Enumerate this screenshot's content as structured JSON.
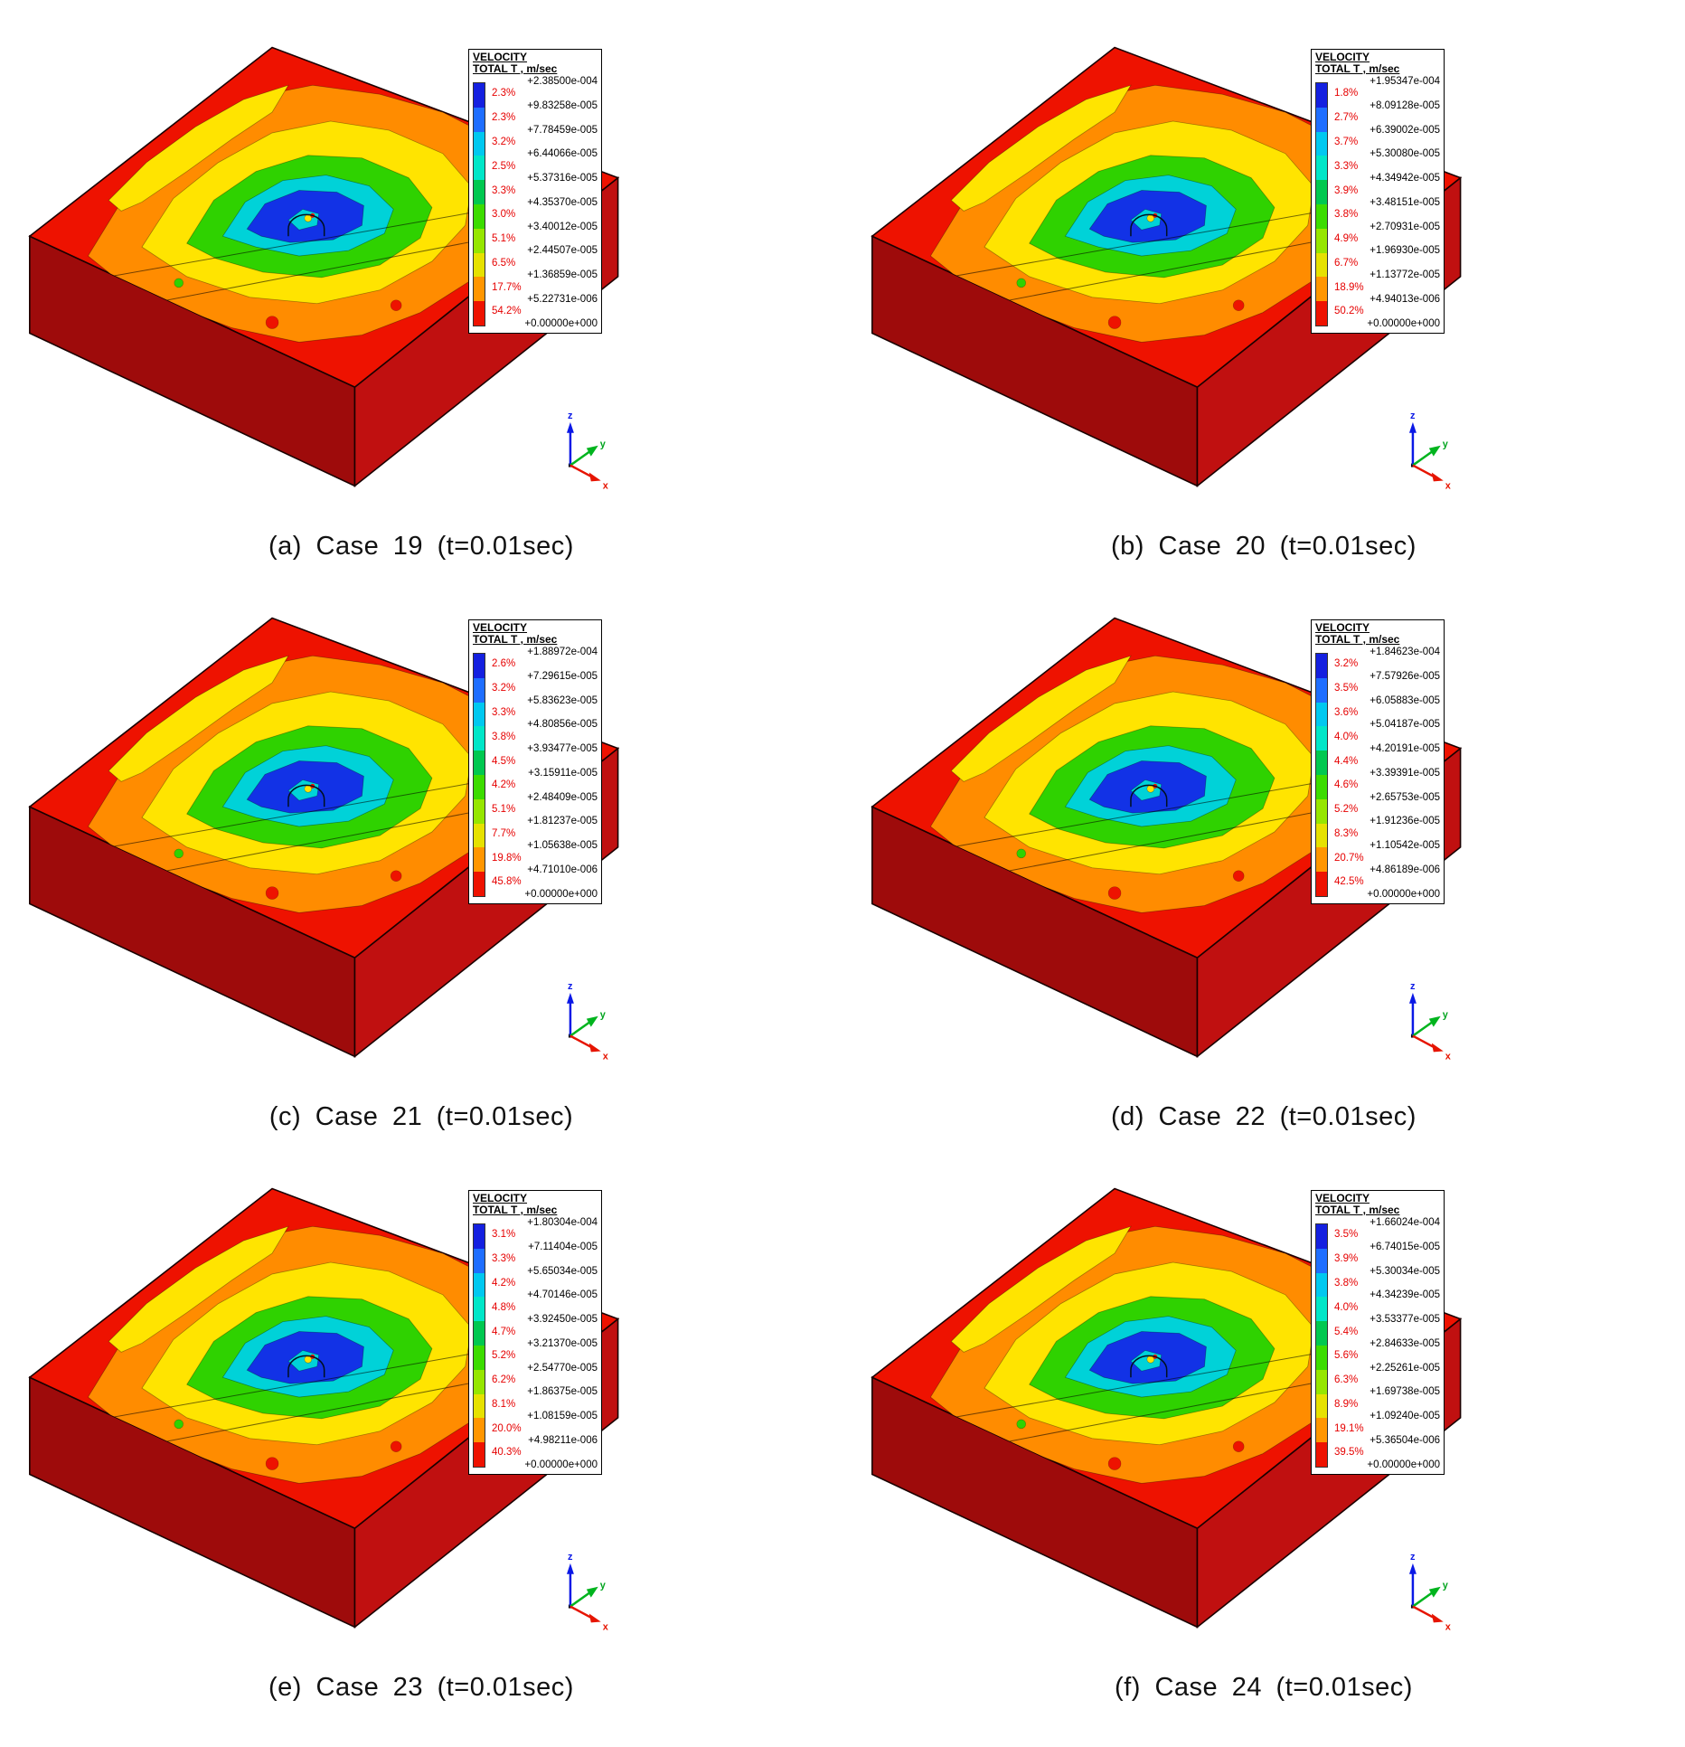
{
  "figure": {
    "legend_title_line1": "VELOCITY",
    "legend_title_line2": "TOTAL T , m/sec",
    "axis_labels": {
      "x": "x",
      "y": "y",
      "z": "z"
    },
    "colormap": [
      "#1420e0",
      "#1e6eff",
      "#00c8f0",
      "#00e6c8",
      "#00c850",
      "#3cdc00",
      "#96e600",
      "#e6e100",
      "#ff9600",
      "#ee1200"
    ],
    "model_colors": {
      "contour_red": "#ee1200",
      "contour_orange": "#ff8c00",
      "contour_yellow": "#ffe400",
      "contour_green": "#2fd200",
      "contour_cyan": "#00d2d8",
      "contour_blue": "#1232e6",
      "left_face": "#9e0b0b",
      "right_face": "#c01010"
    }
  },
  "panels": [
    {
      "caption": "(a) Case 19 (t=0.01sec)",
      "legend_values": [
        "+2.38500e-004",
        "+9.83258e-005",
        "+7.78459e-005",
        "+6.44066e-005",
        "+5.37316e-005",
        "+4.35370e-005",
        "+3.40012e-005",
        "+2.44507e-005",
        "+1.36859e-005",
        "+5.22731e-006",
        "+0.00000e+000"
      ],
      "legend_percents": [
        "2.3%",
        "2.3%",
        "3.2%",
        "2.5%",
        "3.3%",
        "3.0%",
        "5.1%",
        "6.5%",
        "17.7%",
        "54.2%"
      ]
    },
    {
      "caption": "(b) Case 20 (t=0.01sec)",
      "legend_values": [
        "+1.95347e-004",
        "+8.09128e-005",
        "+6.39002e-005",
        "+5.30080e-005",
        "+4.34942e-005",
        "+3.48151e-005",
        "+2.70931e-005",
        "+1.96930e-005",
        "+1.13772e-005",
        "+4.94013e-006",
        "+0.00000e+000"
      ],
      "legend_percents": [
        "1.8%",
        "2.7%",
        "3.7%",
        "3.3%",
        "3.9%",
        "3.8%",
        "4.9%",
        "6.7%",
        "18.9%",
        "50.2%"
      ]
    },
    {
      "caption": "(c) Case 21 (t=0.01sec)",
      "legend_values": [
        "+1.88972e-004",
        "+7.29615e-005",
        "+5.83623e-005",
        "+4.80856e-005",
        "+3.93477e-005",
        "+3.15911e-005",
        "+2.48409e-005",
        "+1.81237e-005",
        "+1.05638e-005",
        "+4.71010e-006",
        "+0.00000e+000"
      ],
      "legend_percents": [
        "2.6%",
        "3.2%",
        "3.3%",
        "3.8%",
        "4.5%",
        "4.2%",
        "5.1%",
        "7.7%",
        "19.8%",
        "45.8%"
      ]
    },
    {
      "caption": "(d) Case 22 (t=0.01sec)",
      "legend_values": [
        "+1.84623e-004",
        "+7.57926e-005",
        "+6.05883e-005",
        "+5.04187e-005",
        "+4.20191e-005",
        "+3.39391e-005",
        "+2.65753e-005",
        "+1.91236e-005",
        "+1.10542e-005",
        "+4.86189e-006",
        "+0.00000e+000"
      ],
      "legend_percents": [
        "3.2%",
        "3.5%",
        "3.6%",
        "4.0%",
        "4.4%",
        "4.6%",
        "5.2%",
        "8.3%",
        "20.7%",
        "42.5%"
      ]
    },
    {
      "caption": "(e) Case 23 (t=0.01sec)",
      "legend_values": [
        "+1.80304e-004",
        "+7.11404e-005",
        "+5.65034e-005",
        "+4.70146e-005",
        "+3.92450e-005",
        "+3.21370e-005",
        "+2.54770e-005",
        "+1.86375e-005",
        "+1.08159e-005",
        "+4.98211e-006",
        "+0.00000e+000"
      ],
      "legend_percents": [
        "3.1%",
        "3.3%",
        "4.2%",
        "4.8%",
        "4.7%",
        "5.2%",
        "6.2%",
        "8.1%",
        "20.0%",
        "40.3%"
      ]
    },
    {
      "caption": "(f) Case 24 (t=0.01sec)",
      "legend_values": [
        "+1.66024e-004",
        "+6.74015e-005",
        "+5.30034e-005",
        "+4.34239e-005",
        "+3.53377e-005",
        "+2.84633e-005",
        "+2.25261e-005",
        "+1.69738e-005",
        "+1.09240e-005",
        "+5.36504e-006",
        "+0.00000e+000"
      ],
      "legend_percents": [
        "3.5%",
        "3.9%",
        "3.8%",
        "4.0%",
        "5.4%",
        "5.6%",
        "6.3%",
        "8.9%",
        "19.1%",
        "39.5%"
      ]
    }
  ]
}
